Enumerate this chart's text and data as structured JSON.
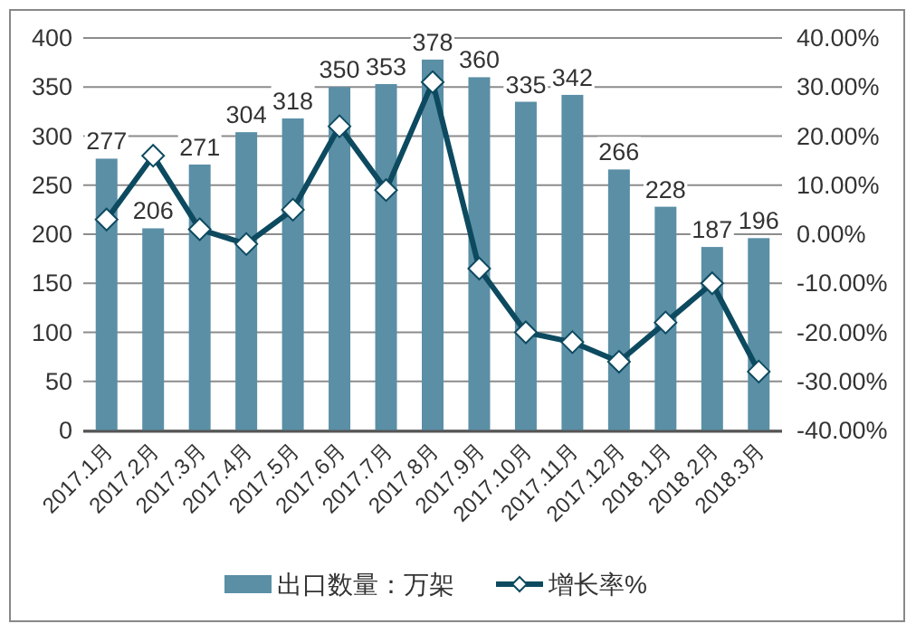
{
  "chart_data": {
    "type": "bar",
    "categories": [
      "2017.1月",
      "2017.2月",
      "2017.3月",
      "2017.4月",
      "2017.5月",
      "2017.6月",
      "2017.7月",
      "2017.8月",
      "2017.9月",
      "2017.10月",
      "2017.11月",
      "2017.12月",
      "2018.1月",
      "2018.2月",
      "2018.3月"
    ],
    "series": [
      {
        "name": "出口数量：万架",
        "color": "#5a8fa6",
        "values": [
          277,
          206,
          271,
          304,
          318,
          350,
          353,
          378,
          360,
          335,
          342,
          266,
          228,
          187,
          196
        ],
        "value_labels": [
          "277",
          "206",
          "271",
          "304",
          "318",
          "350",
          "353",
          "378",
          "360",
          "335",
          "342",
          "266",
          "228",
          "187",
          "196"
        ]
      },
      {
        "name": "增长率%",
        "type": "line",
        "axis": "y2",
        "color": "#0d4a60",
        "marker": "diamond",
        "values": [
          3,
          16,
          1,
          -2,
          5,
          22,
          9,
          31,
          -7,
          -20,
          -22,
          -26,
          -18,
          -10,
          -28
        ]
      }
    ],
    "ylim": [
      0,
      400
    ],
    "yticks": [
      0,
      50,
      100,
      150,
      200,
      250,
      300,
      350,
      400
    ],
    "y2lim": [
      -40,
      40
    ],
    "y2ticks": [
      {
        "value": -40,
        "label": "-40.00%"
      },
      {
        "value": -30,
        "label": "-30.00%"
      },
      {
        "value": -20,
        "label": "-20.00%"
      },
      {
        "value": -10,
        "label": "-10.00%"
      },
      {
        "value": 0,
        "label": "0.00%"
      },
      {
        "value": 10,
        "label": "10.00%"
      },
      {
        "value": 20,
        "label": "20.00%"
      },
      {
        "value": 30,
        "label": "30.00%"
      },
      {
        "value": 40,
        "label": "40.00%"
      }
    ],
    "grid": "y",
    "legend": "bottom"
  }
}
